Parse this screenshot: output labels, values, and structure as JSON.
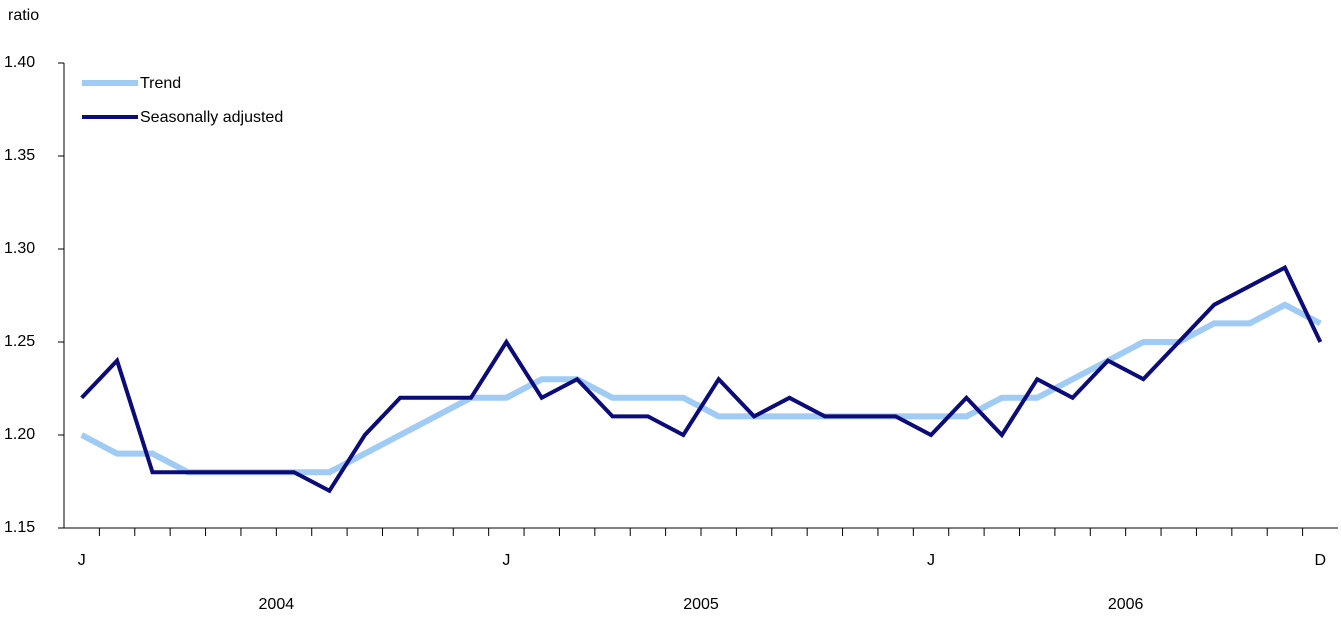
{
  "chart_data": {
    "type": "line",
    "y_label": "ratio",
    "categories": [
      "J",
      null,
      null,
      null,
      null,
      null,
      null,
      null,
      null,
      null,
      null,
      null,
      "J",
      null,
      null,
      null,
      null,
      null,
      null,
      null,
      null,
      null,
      null,
      null,
      "J",
      null,
      null,
      null,
      null,
      null,
      null,
      null,
      null,
      null,
      null,
      "D"
    ],
    "groups": [
      "2004",
      "2005",
      "2006"
    ],
    "series": [
      {
        "name": "Trend",
        "color": "#9fcbf5",
        "values": [
          1.2,
          1.19,
          1.19,
          1.18,
          1.18,
          1.18,
          1.18,
          1.18,
          1.19,
          1.2,
          1.21,
          1.22,
          1.22,
          1.23,
          1.23,
          1.22,
          1.22,
          1.22,
          1.21,
          1.21,
          1.21,
          1.21,
          1.21,
          1.21,
          1.21,
          1.21,
          1.22,
          1.22,
          1.23,
          1.24,
          1.25,
          1.25,
          1.26,
          1.26,
          1.27,
          1.26
        ]
      },
      {
        "name": "Seasonally adjusted",
        "color": "#0b0b7a",
        "values": [
          1.22,
          1.24,
          1.18,
          1.18,
          1.18,
          1.18,
          1.18,
          1.17,
          1.2,
          1.22,
          1.22,
          1.22,
          1.25,
          1.22,
          1.23,
          1.21,
          1.21,
          1.2,
          1.23,
          1.21,
          1.22,
          1.21,
          1.21,
          1.21,
          1.2,
          1.22,
          1.2,
          1.23,
          1.22,
          1.24,
          1.23,
          1.25,
          1.27,
          1.28,
          1.29,
          1.25
        ]
      }
    ],
    "ylim": [
      1.15,
      1.4
    ],
    "yticks": [
      1.15,
      {
        "value": 1.2,
        "label": "1.20"
      },
      1.25,
      {
        "value": 1.3,
        "label": "1.30"
      },
      1.35,
      {
        "value": 1.4,
        "label": "1.40"
      }
    ],
    "legend": "top-left"
  }
}
